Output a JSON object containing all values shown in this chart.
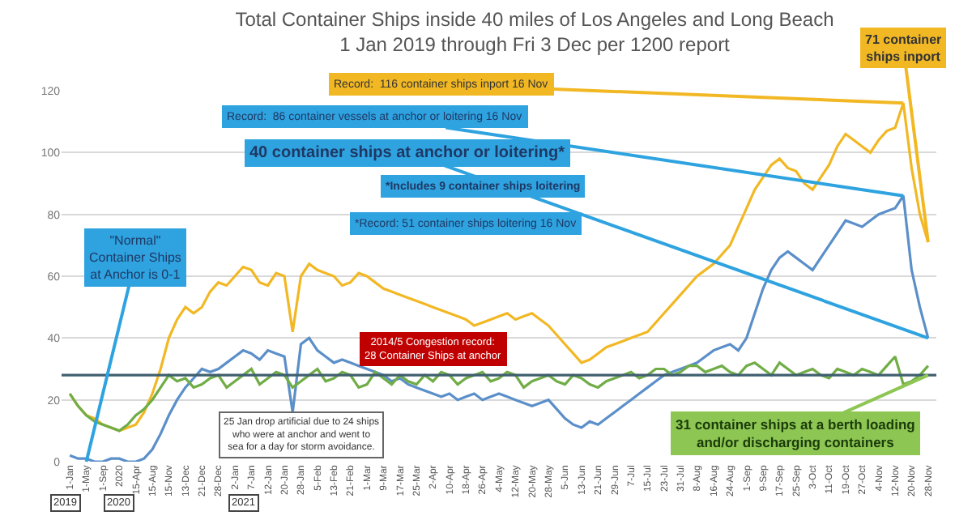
{
  "chart_data": {
    "type": "line",
    "title": "Total Container Ships inside 40 miles of Los Angeles and Long Beach",
    "subtitle": "1 Jan 2019 through Fri 3 Dec per 1200 report",
    "categories": [
      "1-Jan",
      null,
      "1-May",
      null,
      "1-Sep",
      null,
      "2020",
      null,
      "15-Apr",
      null,
      "15-Aug",
      null,
      "15-Nov",
      null,
      "13-Dec",
      null,
      "21-Dec",
      null,
      "28-Dec",
      null,
      "2-Jan",
      null,
      "7-Jan",
      null,
      "12-Jan",
      null,
      "20-Jan",
      null,
      "28-Jan",
      null,
      "5-Feb",
      null,
      "13-Feb",
      null,
      "21-Feb",
      null,
      "1-Mar",
      null,
      "9-Mar",
      null,
      "17-Mar",
      null,
      "25-Mar",
      null,
      "2-Apr",
      null,
      "10-Apr",
      null,
      "18-Apr",
      null,
      "26-Apr",
      null,
      "4-May",
      null,
      "12-May",
      null,
      "20-May",
      null,
      "28-May",
      null,
      "5-Jun",
      null,
      "13-Jun",
      null,
      "21-Jun",
      null,
      "29-Jun",
      null,
      "7-Jul",
      null,
      "15-Jul",
      null,
      "23-Jul",
      null,
      "31-Jul",
      null,
      "8-Aug",
      null,
      "16-Aug",
      null,
      "24-Aug",
      null,
      "1-Sep",
      null,
      "9-Sep",
      null,
      "17-Sep",
      null,
      "25-Sep",
      null,
      "3-Oct",
      null,
      "11-Oct",
      null,
      "19-Oct",
      null,
      "27-Oct",
      null,
      "4-Nov",
      null,
      "12-Nov",
      null,
      "20-Nov",
      null,
      "28-Nov"
    ],
    "series": [
      {
        "color": "#f2b824",
        "values": [
          22,
          18,
          15,
          14,
          12,
          11,
          10,
          11,
          12,
          16,
          22,
          30,
          40,
          46,
          50,
          48,
          50,
          55,
          58,
          57,
          60,
          63,
          62,
          58,
          57,
          61,
          60,
          42,
          60,
          64,
          62,
          61,
          60,
          57,
          58,
          61,
          60,
          58,
          56,
          55,
          54,
          53,
          52,
          51,
          50,
          49,
          48,
          47,
          46,
          44,
          45,
          46,
          47,
          48,
          46,
          47,
          48,
          46,
          44,
          41,
          38,
          35,
          32,
          33,
          35,
          37,
          38,
          39,
          40,
          41,
          42,
          45,
          48,
          51,
          54,
          57,
          60,
          62,
          64,
          67,
          70,
          76,
          82,
          88,
          92,
          96,
          98,
          95,
          94,
          90,
          88,
          92,
          96,
          102,
          106,
          104,
          102,
          100,
          104,
          107,
          108,
          116,
          95,
          80,
          71
        ]
      },
      {
        "color": "#5b8fc9",
        "values": [
          2,
          1,
          1,
          0,
          0,
          1,
          1,
          0,
          0,
          1,
          4,
          9,
          15,
          20,
          24,
          27,
          30,
          29,
          30,
          32,
          34,
          36,
          35,
          33,
          36,
          35,
          34,
          16,
          38,
          40,
          36,
          34,
          32,
          33,
          32,
          31,
          30,
          29,
          28,
          26,
          27,
          25,
          24,
          23,
          22,
          21,
          22,
          20,
          21,
          22,
          20,
          21,
          22,
          21,
          20,
          19,
          18,
          19,
          20,
          17,
          14,
          12,
          11,
          13,
          12,
          14,
          16,
          18,
          20,
          22,
          24,
          26,
          28,
          29,
          30,
          31,
          32,
          34,
          36,
          37,
          38,
          36,
          40,
          48,
          56,
          62,
          66,
          68,
          66,
          64,
          62,
          66,
          70,
          74,
          78,
          77,
          76,
          78,
          80,
          81,
          82,
          86,
          62,
          50,
          40
        ]
      },
      {
        "color": "#70ad47",
        "values": [
          22,
          18,
          15,
          13,
          12,
          11,
          10,
          12,
          15,
          17,
          20,
          24,
          28,
          26,
          27,
          24,
          25,
          27,
          28,
          24,
          26,
          28,
          30,
          25,
          27,
          29,
          28,
          24,
          26,
          28,
          30,
          26,
          27,
          29,
          28,
          24,
          25,
          29,
          27,
          25,
          28,
          26,
          25,
          28,
          26,
          29,
          28,
          25,
          27,
          28,
          29,
          26,
          27,
          29,
          28,
          24,
          26,
          27,
          28,
          26,
          25,
          28,
          27,
          25,
          24,
          26,
          27,
          28,
          29,
          27,
          28,
          30,
          30,
          28,
          29,
          31,
          31,
          29,
          30,
          31,
          29,
          28,
          31,
          32,
          30,
          28,
          32,
          30,
          28,
          29,
          30,
          28,
          27,
          30,
          29,
          28,
          30,
          29,
          28,
          31,
          34,
          25,
          26,
          28,
          31
        ]
      }
    ],
    "ylim": [
      0,
      120
    ],
    "yticks": [
      0,
      20,
      40,
      60,
      80,
      100,
      120
    ],
    "grid": "y",
    "ref_lines": [
      {
        "axis": "y",
        "value": 28,
        "color": "#3f5f6f",
        "label": "2014/5 Congestion record:\n28 Container Ships at anchor"
      }
    ],
    "annotations": [
      "Record:  116 container ships inport 16 Nov",
      "Record:  86 container vessels at anchor or loitering 16 Nov",
      {
        "text": "40 container ships at anchor or loitering*",
        "x": "28-Nov",
        "y": 40
      },
      "*Includes 9 container ships loitering",
      "*Record: 51 container ships loitering 16 Nov",
      {
        "text": "71 container\nships inport",
        "x": "28-Nov",
        "y": 71
      },
      {
        "text": "\"Normal\"\nContainer Ships\nat Anchor is 0-1",
        "x": "1-May",
        "y": 0
      },
      "25 Jan drop artificial due to 24 ships\nwho were at anchor and went to\nsea for a day for storm avoidance.",
      {
        "text": "31 container ships at a berth loading\nand/or discharging containers",
        "x": "28-Nov",
        "y": 28
      },
      "2019",
      "2020",
      "2021"
    ]
  }
}
